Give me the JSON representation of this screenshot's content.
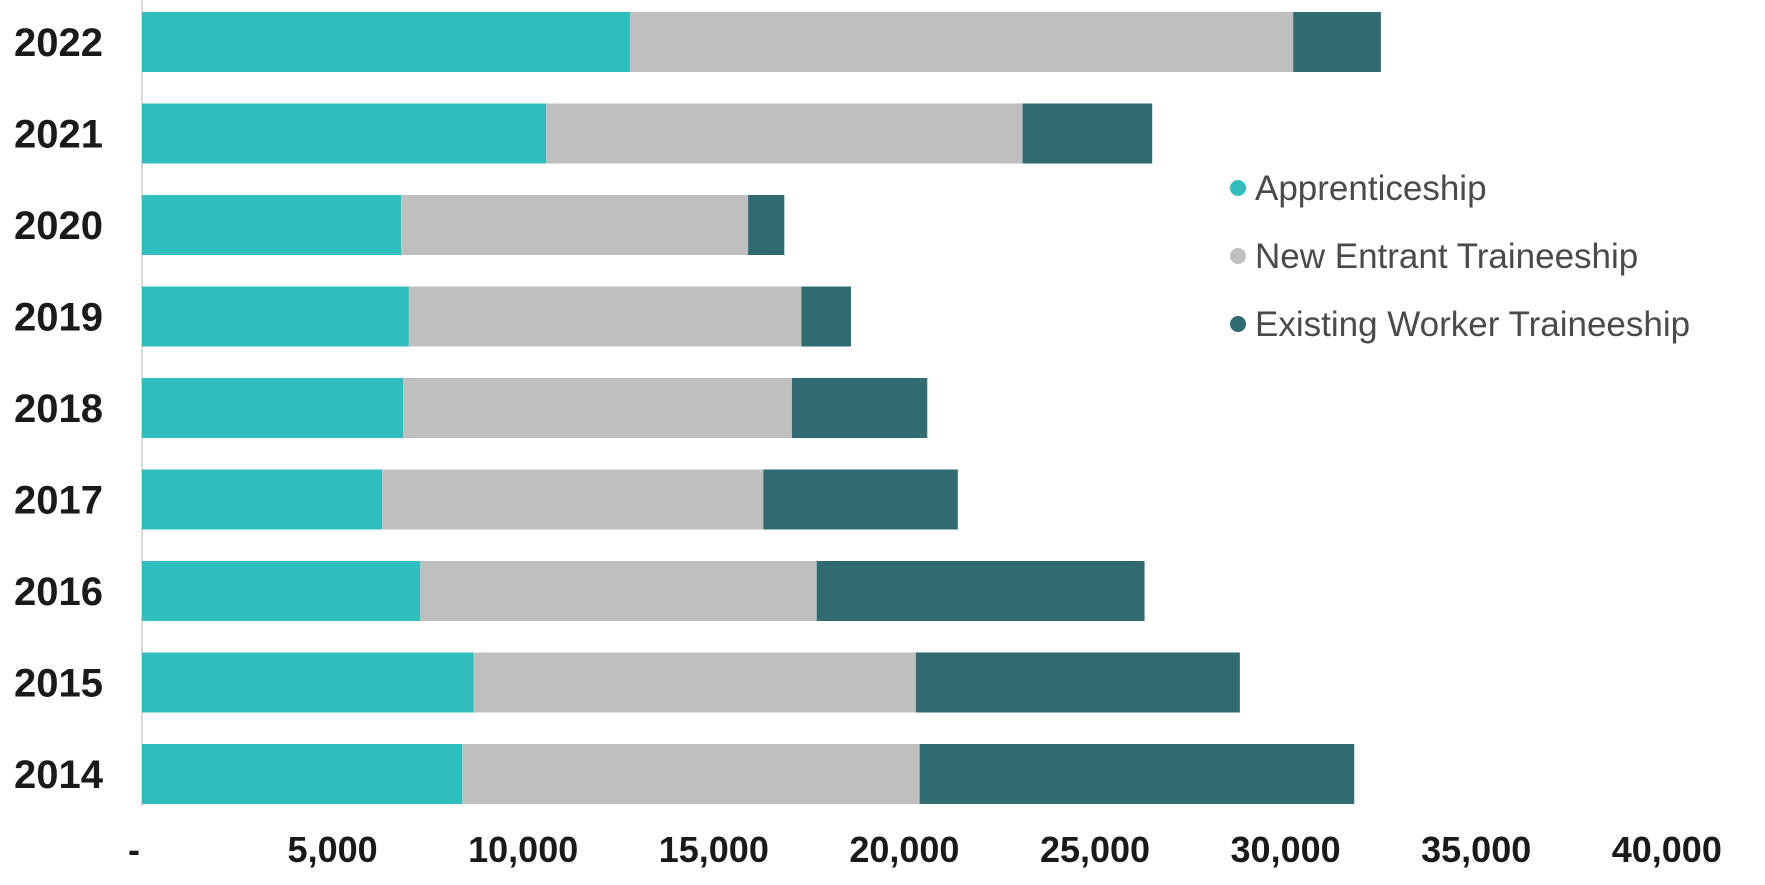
{
  "chart_data": {
    "type": "bar",
    "orientation": "horizontal",
    "stacked": true,
    "categories": [
      "2022",
      "2021",
      "2020",
      "2019",
      "2018",
      "2017",
      "2016",
      "2015",
      "2014"
    ],
    "series": [
      {
        "name": "Apprenticeship",
        "color": "#2fbdbd",
        "values": [
          12800,
          10600,
          6800,
          7000,
          6850,
          6300,
          7300,
          8700,
          8400
        ]
      },
      {
        "name": "New Entrant Traineeship",
        "color": "#bfbfbf",
        "values": [
          17400,
          12500,
          9100,
          10300,
          10200,
          10000,
          10400,
          11600,
          12000
        ]
      },
      {
        "name": "Existing Worker Traineeship",
        "color": "#2f6b70",
        "values": [
          2300,
          3400,
          950,
          1300,
          3550,
          5100,
          8600,
          8500,
          11400
        ]
      }
    ],
    "x_ticks": [
      0,
      5000,
      10000,
      15000,
      20000,
      25000,
      30000,
      35000,
      40000
    ],
    "x_tick_labels": [
      "-",
      "5,000",
      "10,000",
      "15,000",
      "20,000",
      "25,000",
      "30,000",
      "35,000",
      "40,000"
    ],
    "xlim": [
      0,
      40000
    ],
    "title": "",
    "xlabel": "",
    "ylabel": "",
    "grid": false,
    "legend_position": "right"
  }
}
